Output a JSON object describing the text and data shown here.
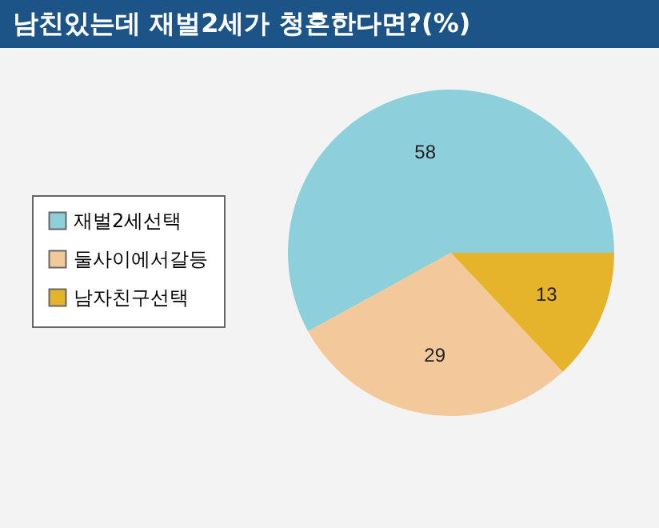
{
  "chart_data": {
    "type": "pie",
    "title": "남친있는데 재벌2세가 청혼한다면?(%)",
    "categories": [
      "재벌2세선택",
      "둘사이에서갈등",
      "남자친구선택"
    ],
    "values": [
      58,
      29,
      13
    ],
    "colors": [
      "#8ecfdc",
      "#f3c99c",
      "#e6b42a"
    ],
    "data_labels": true,
    "legend": "left"
  }
}
